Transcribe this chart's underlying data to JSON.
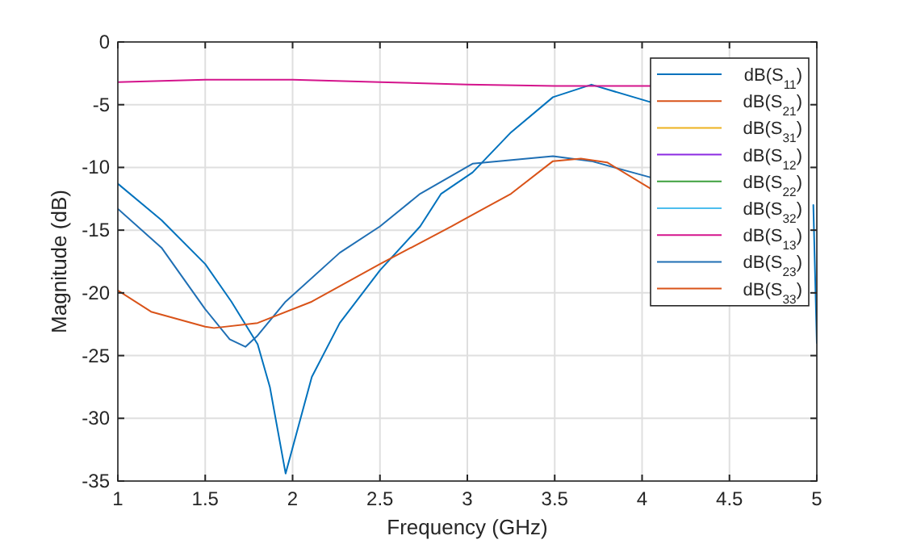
{
  "chart_data": {
    "type": "line",
    "xlabel": "Frequency (GHz)",
    "ylabel": "Magnitude (dB)",
    "xlim": [
      1,
      5
    ],
    "ylim": [
      -35,
      0
    ],
    "xticks": [
      1,
      1.5,
      2,
      2.5,
      3,
      3.5,
      4,
      4.5,
      5
    ],
    "yticks": [
      -35,
      -30,
      -25,
      -20,
      -15,
      -10,
      -5,
      0
    ],
    "grid": true,
    "legend": "top right",
    "marker": "none",
    "line_style": "solid",
    "series": [
      {
        "name": "dB(S$_{11}$)",
        "color": "#0072bd",
        "x": [
          1,
          1.25,
          1.5,
          1.65,
          1.8,
          1.87,
          1.96,
          2.11,
          2.27,
          2.5,
          2.73,
          2.85,
          3.03,
          3.25,
          3.49,
          3.71,
          4.05,
          4.5,
          4.98,
          5
        ],
        "values": [
          -11.3,
          -14.2,
          -17.7,
          -20.7,
          -24.1,
          -27.5,
          -34.4,
          -26.7,
          -22.4,
          -18.2,
          -14.7,
          -12.1,
          -10.4,
          -7.2,
          -4.4,
          -3.4,
          -4.8,
          null,
          -13,
          -24
        ]
      },
      {
        "name": "dB(S$_{21}$)",
        "color": "#d95319"
      },
      {
        "name": "dB(S$_{31}$)",
        "color": "#edb120"
      },
      {
        "name": "dB(S$_{12}$)",
        "color": "#8b2be2"
      },
      {
        "name": "dB(S$_{22}$)",
        "color": "#3ca03c"
      },
      {
        "name": "dB(S$_{32}$)",
        "color": "#4dbeee"
      },
      {
        "name": "dB(S$_{13}$)",
        "color": "#d4148c",
        "x": [
          1,
          1.5,
          2,
          2.5,
          3,
          3.5,
          4,
          4.05
        ],
        "values": [
          -3.2,
          -3,
          -3,
          -3.2,
          -3.4,
          -3.5,
          -3.5,
          -3.5
        ]
      },
      {
        "name": "dB(S$_{23}$)",
        "color": "#1f6fb4",
        "x": [
          1,
          1.25,
          1.5,
          1.64,
          1.73,
          1.8,
          1.96,
          2.27,
          2.5,
          2.73,
          3.03,
          3.49,
          3.71,
          4.05
        ],
        "values": [
          -13.3,
          -16.4,
          -21.3,
          -23.7,
          -24.3,
          -23.4,
          -20.7,
          -16.8,
          -14.7,
          -12.1,
          -9.7,
          -9.1,
          -9.5,
          -10.8
        ]
      },
      {
        "name": "dB(S$_{33}$)",
        "color": "#d95319",
        "x": [
          1,
          1.19,
          1.5,
          1.55,
          1.8,
          2.11,
          2.5,
          2.91,
          3,
          3.25,
          3.49,
          3.65,
          3.8,
          4.05
        ],
        "values": [
          -19.8,
          -21.5,
          -22.7,
          -22.8,
          -22.4,
          -20.7,
          -17.7,
          -14.7,
          -14,
          -12.1,
          -9.5,
          -9.3,
          -9.6,
          -11.7
        ]
      }
    ]
  }
}
